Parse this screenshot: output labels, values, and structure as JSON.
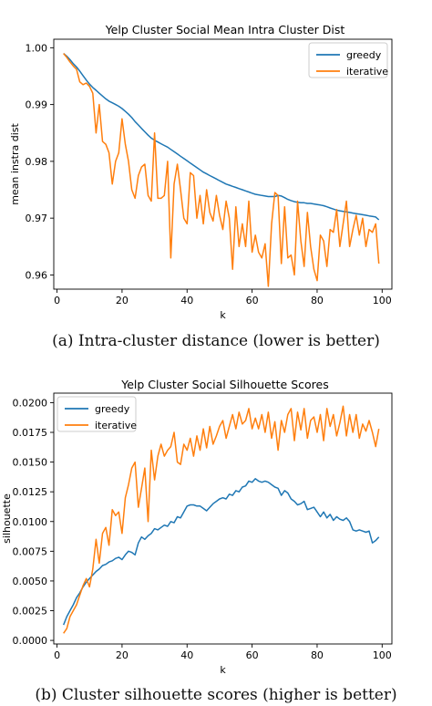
{
  "captions": {
    "a": "(a) Intra-cluster distance (lower is better)",
    "b": "(b) Cluster silhouette scores (higher is better)"
  },
  "colors": {
    "greedy": "#1f77b4",
    "iterative": "#ff7f0e"
  },
  "chart_data": [
    {
      "type": "line",
      "title": "Yelp Cluster Social Mean Intra Cluster Dist",
      "xlabel": "k",
      "ylabel": "mean instra dist",
      "xlim": [
        -1,
        103
      ],
      "ylim": [
        0.9575,
        1.0015
      ],
      "xticks": [
        0,
        20,
        40,
        60,
        80,
        100
      ],
      "yticks": [
        0.96,
        0.97,
        0.98,
        0.99,
        1.0
      ],
      "ytick_labels": [
        "0.96",
        "0.97",
        "0.98",
        "0.99",
        "1.00"
      ],
      "legend": "top-right",
      "x": [
        2,
        3,
        4,
        5,
        6,
        7,
        8,
        9,
        10,
        11,
        12,
        13,
        14,
        15,
        16,
        17,
        18,
        19,
        20,
        21,
        22,
        23,
        24,
        25,
        26,
        27,
        28,
        29,
        30,
        31,
        32,
        33,
        34,
        35,
        36,
        37,
        38,
        39,
        40,
        41,
        42,
        43,
        44,
        45,
        46,
        47,
        48,
        49,
        50,
        51,
        52,
        53,
        54,
        55,
        56,
        57,
        58,
        59,
        60,
        61,
        62,
        63,
        64,
        65,
        66,
        67,
        68,
        69,
        70,
        71,
        72,
        73,
        74,
        75,
        76,
        77,
        78,
        79,
        80,
        81,
        82,
        83,
        84,
        85,
        86,
        87,
        88,
        89,
        90,
        91,
        92,
        93,
        94,
        95,
        96,
        97,
        98,
        99
      ],
      "series": [
        {
          "name": "greedy",
          "values": [
            0.999,
            0.9985,
            0.9979,
            0.9972,
            0.9966,
            0.9959,
            0.9951,
            0.9943,
            0.9936,
            0.993,
            0.9925,
            0.992,
            0.9915,
            0.991,
            0.9906,
            0.9903,
            0.99,
            0.9897,
            0.9893,
            0.9888,
            0.9883,
            0.9877,
            0.987,
            0.9864,
            0.9858,
            0.9852,
            0.9846,
            0.9841,
            0.9837,
            0.9834,
            0.9831,
            0.9828,
            0.9825,
            0.9821,
            0.9817,
            0.9813,
            0.9809,
            0.9805,
            0.9801,
            0.9797,
            0.9793,
            0.9789,
            0.9785,
            0.9781,
            0.9778,
            0.9775,
            0.9772,
            0.9769,
            0.9766,
            0.9763,
            0.976,
            0.9758,
            0.9756,
            0.9754,
            0.9752,
            0.975,
            0.9748,
            0.9746,
            0.9744,
            0.9742,
            0.9741,
            0.974,
            0.9739,
            0.9738,
            0.9738,
            0.9738,
            0.974,
            0.9739,
            0.9736,
            0.9733,
            0.9731,
            0.9729,
            0.9728,
            0.9727,
            0.9727,
            0.9726,
            0.9726,
            0.9725,
            0.9724,
            0.9723,
            0.9722,
            0.972,
            0.9718,
            0.9716,
            0.9714,
            0.9713,
            0.9712,
            0.9711,
            0.971,
            0.9709,
            0.9708,
            0.9707,
            0.9706,
            0.9705,
            0.9704,
            0.9703,
            0.9702,
            0.9697
          ]
        },
        {
          "name": "iterative",
          "values": [
            0.999,
            0.9983,
            0.9975,
            0.9968,
            0.9962,
            0.994,
            0.9935,
            0.9938,
            0.9932,
            0.992,
            0.985,
            0.99,
            0.9835,
            0.983,
            0.9815,
            0.976,
            0.98,
            0.9815,
            0.9875,
            0.983,
            0.98,
            0.975,
            0.9735,
            0.9775,
            0.979,
            0.9795,
            0.974,
            0.973,
            0.985,
            0.9735,
            0.9735,
            0.974,
            0.98,
            0.963,
            0.976,
            0.9795,
            0.975,
            0.97,
            0.969,
            0.978,
            0.9775,
            0.97,
            0.974,
            0.969,
            0.975,
            0.971,
            0.9695,
            0.974,
            0.9705,
            0.968,
            0.973,
            0.97,
            0.961,
            0.972,
            0.965,
            0.969,
            0.965,
            0.973,
            0.964,
            0.967,
            0.964,
            0.963,
            0.9655,
            0.958,
            0.969,
            0.9745,
            0.974,
            0.962,
            0.972,
            0.963,
            0.9635,
            0.96,
            0.973,
            0.966,
            0.9615,
            0.971,
            0.965,
            0.961,
            0.959,
            0.967,
            0.966,
            0.9615,
            0.968,
            0.9675,
            0.9715,
            0.965,
            0.969,
            0.973,
            0.965,
            0.968,
            0.9705,
            0.967,
            0.97,
            0.965,
            0.968,
            0.9675,
            0.969,
            0.962
          ]
        }
      ]
    },
    {
      "type": "line",
      "title": "Yelp Cluster Social Silhouette Scores",
      "xlabel": "k",
      "ylabel": "silhouette",
      "xlim": [
        -1,
        103
      ],
      "ylim": [
        -0.0003,
        0.0208
      ],
      "xticks": [
        0,
        20,
        40,
        60,
        80,
        100
      ],
      "yticks": [
        0.0,
        0.0025,
        0.005,
        0.0075,
        0.01,
        0.0125,
        0.015,
        0.0175,
        0.02
      ],
      "ytick_labels": [
        "0.0000",
        "0.0025",
        "0.0050",
        "0.0075",
        "0.0100",
        "0.0125",
        "0.0150",
        "0.0175",
        "0.0200"
      ],
      "legend": "top-left",
      "x": [
        2,
        3,
        4,
        5,
        6,
        7,
        8,
        9,
        10,
        11,
        12,
        13,
        14,
        15,
        16,
        17,
        18,
        19,
        20,
        21,
        22,
        23,
        24,
        25,
        26,
        27,
        28,
        29,
        30,
        31,
        32,
        33,
        34,
        35,
        36,
        37,
        38,
        39,
        40,
        41,
        42,
        43,
        44,
        45,
        46,
        47,
        48,
        49,
        50,
        51,
        52,
        53,
        54,
        55,
        56,
        57,
        58,
        59,
        60,
        61,
        62,
        63,
        64,
        65,
        66,
        67,
        68,
        69,
        70,
        71,
        72,
        73,
        74,
        75,
        76,
        77,
        78,
        79,
        80,
        81,
        82,
        83,
        84,
        85,
        86,
        87,
        88,
        89,
        90,
        91,
        92,
        93,
        94,
        95,
        96,
        97,
        98,
        99
      ],
      "series": [
        {
          "name": "greedy",
          "values": [
            0.0013,
            0.002,
            0.0025,
            0.003,
            0.0036,
            0.004,
            0.0045,
            0.0049,
            0.0052,
            0.0055,
            0.0058,
            0.006,
            0.0063,
            0.0064,
            0.0066,
            0.0067,
            0.0069,
            0.007,
            0.0068,
            0.0072,
            0.0075,
            0.0074,
            0.0072,
            0.0082,
            0.0087,
            0.0085,
            0.0088,
            0.009,
            0.0094,
            0.0093,
            0.0095,
            0.0097,
            0.0096,
            0.01,
            0.0099,
            0.0104,
            0.0103,
            0.0108,
            0.0113,
            0.0114,
            0.0114,
            0.0113,
            0.0113,
            0.0111,
            0.0109,
            0.0112,
            0.0115,
            0.0117,
            0.0119,
            0.012,
            0.0119,
            0.0123,
            0.0122,
            0.0126,
            0.0125,
            0.0129,
            0.013,
            0.0134,
            0.0133,
            0.0136,
            0.0134,
            0.0133,
            0.0134,
            0.0133,
            0.0131,
            0.0129,
            0.0128,
            0.0122,
            0.0126,
            0.0124,
            0.0119,
            0.0117,
            0.0114,
            0.0115,
            0.0117,
            0.011,
            0.0111,
            0.0112,
            0.0108,
            0.0104,
            0.0108,
            0.0103,
            0.0106,
            0.0101,
            0.0104,
            0.0102,
            0.0101,
            0.0103,
            0.01,
            0.0093,
            0.0092,
            0.0093,
            0.0092,
            0.0091,
            0.0092,
            0.0082,
            0.0084,
            0.0087
          ]
        },
        {
          "name": "iterative",
          "values": [
            0.0006,
            0.001,
            0.002,
            0.0025,
            0.003,
            0.0038,
            0.0046,
            0.0052,
            0.0045,
            0.006,
            0.0085,
            0.0065,
            0.009,
            0.0095,
            0.008,
            0.011,
            0.0105,
            0.0108,
            0.009,
            0.012,
            0.0131,
            0.0145,
            0.015,
            0.0112,
            0.0128,
            0.0145,
            0.01,
            0.016,
            0.0135,
            0.0155,
            0.0165,
            0.0155,
            0.016,
            0.0163,
            0.0175,
            0.015,
            0.0148,
            0.0165,
            0.016,
            0.017,
            0.0155,
            0.0172,
            0.016,
            0.0178,
            0.0162,
            0.018,
            0.0165,
            0.0172,
            0.018,
            0.0185,
            0.017,
            0.018,
            0.019,
            0.0178,
            0.0192,
            0.0182,
            0.0185,
            0.0195,
            0.0178,
            0.0187,
            0.0178,
            0.019,
            0.0175,
            0.0192,
            0.017,
            0.0184,
            0.016,
            0.0185,
            0.0175,
            0.019,
            0.0195,
            0.0168,
            0.0192,
            0.0177,
            0.0195,
            0.017,
            0.0185,
            0.0188,
            0.0175,
            0.019,
            0.0168,
            0.0195,
            0.018,
            0.019,
            0.0172,
            0.0183,
            0.0197,
            0.0172,
            0.019,
            0.0175,
            0.019,
            0.017,
            0.0182,
            0.0176,
            0.0185,
            0.0175,
            0.0163,
            0.0178
          ]
        }
      ]
    }
  ]
}
